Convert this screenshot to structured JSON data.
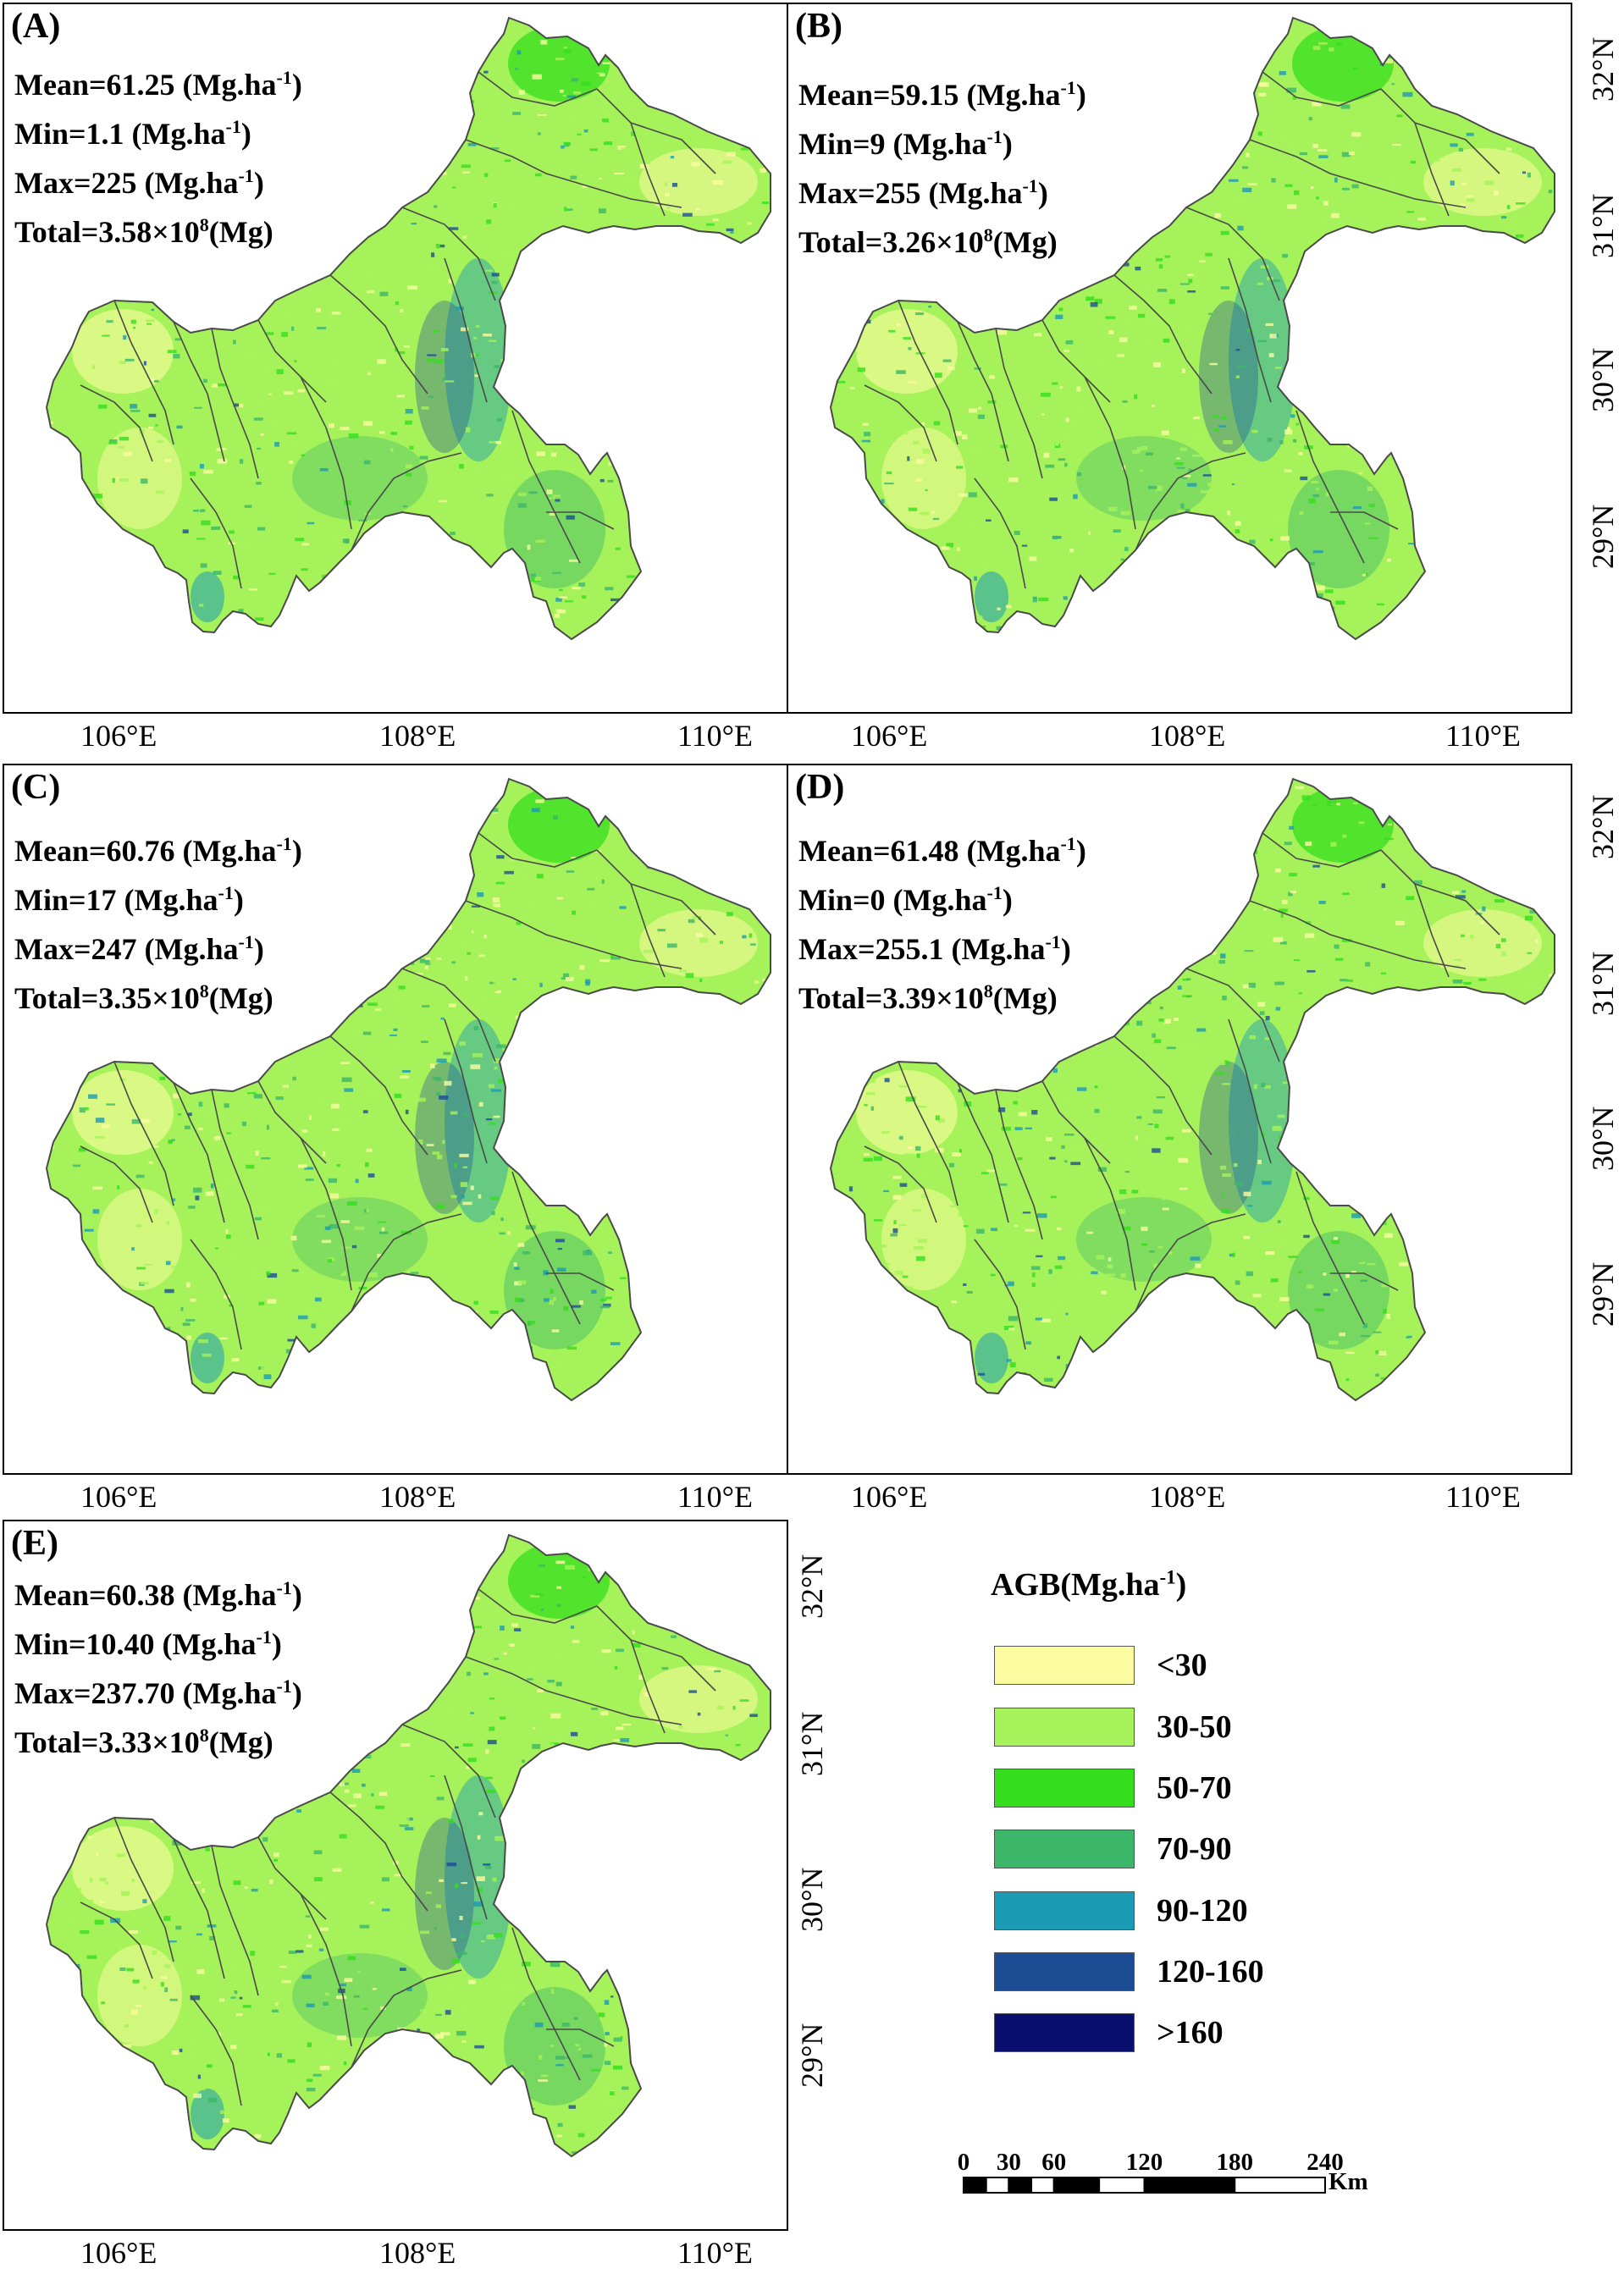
{
  "panels": [
    {
      "label": "(A)",
      "mean": "Mean=61.25 (Mg.ha",
      "min": "Min=1.1 (Mg.ha",
      "max": "Max=225 (Mg.ha",
      "total_pre": "Total=3.58×10",
      "total_exp": "8",
      "total_post": "(Mg)"
    },
    {
      "label": "(B)",
      "mean": "Mean=59.15 (Mg.ha",
      "min": "Min=9 (Mg.ha",
      "max": "Max=255 (Mg.ha",
      "total_pre": "Total=3.26×10",
      "total_exp": "8",
      "total_post": "(Mg)"
    },
    {
      "label": "(C)",
      "mean": "Mean=60.76 (Mg.ha",
      "min": "Min=17 (Mg.ha",
      "max": "Max=247 (Mg.ha",
      "total_pre": "Total=3.35×10",
      "total_exp": "8",
      "total_post": "(Mg)"
    },
    {
      "label": "(D)",
      "mean": "Mean=61.48 (Mg.ha",
      "min": "Min=0 (Mg.ha",
      "max": "Max=255.1 (Mg.ha",
      "total_pre": "Total=3.39×10",
      "total_exp": "8",
      "total_post": "(Mg)"
    },
    {
      "label": "(E)",
      "mean": "Mean=60.38 (Mg.ha",
      "min": "Min=10.40 (Mg.ha",
      "max": "Max=237.70 (Mg.ha",
      "total_pre": "Total=3.33×10",
      "total_exp": "8",
      "total_post": "(Mg)"
    }
  ],
  "unit_exp": "-1",
  "unit_close": ")",
  "x_ticks": [
    "106°E",
    "108°E",
    "110°E"
  ],
  "y_ticks": [
    "32°N",
    "31°N",
    "30°N",
    "29°N"
  ],
  "legend": {
    "title_pre": "AGB(Mg.ha",
    "title_exp": "-1",
    "title_post": ")",
    "classes": [
      {
        "label": "<30",
        "color": "#fbfba0"
      },
      {
        "label": "30-50",
        "color": "#a6f25a"
      },
      {
        "label": "50-70",
        "color": "#35de1d"
      },
      {
        "label": "70-90",
        "color": "#3cb76a"
      },
      {
        "label": "90-120",
        "color": "#1b9ab4"
      },
      {
        "label": "120-160",
        "color": "#1c4c94"
      },
      {
        "label": ">160",
        "color": "#090f6f"
      }
    ]
  },
  "scale_bar": {
    "labels": [
      "0",
      "30",
      "60",
      "120",
      "180",
      "240"
    ],
    "unit": "Km"
  },
  "colors": {
    "boundary": "#4a4a4a",
    "land_base": "#a6f25a"
  }
}
